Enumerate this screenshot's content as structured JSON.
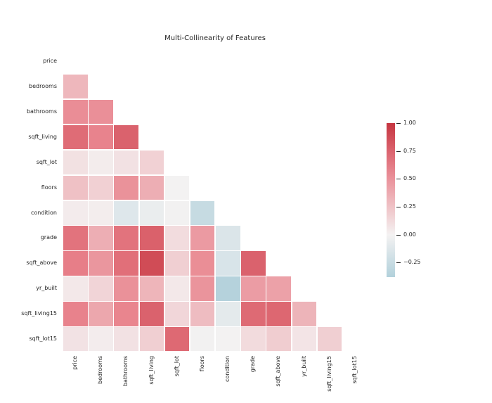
{
  "title": "Multi-Collinearity of Features",
  "chart_data": {
    "type": "heatmap",
    "title": "Multi-Collinearity of Features",
    "xlabel": "",
    "ylabel": "",
    "mask": "upper-triangle-and-diagonal",
    "grid": false,
    "features": [
      "price",
      "bedrooms",
      "bathrooms",
      "sqft_living",
      "sqft_lot",
      "floors",
      "condition",
      "grade",
      "sqft_above",
      "yr_built",
      "sqft_living15",
      "sqft_lot15"
    ],
    "rows": [
      {
        "feature": "price",
        "values": []
      },
      {
        "feature": "bedrooms",
        "values": [
          0.308
        ]
      },
      {
        "feature": "bathrooms",
        "values": [
          0.525,
          0.516
        ]
      },
      {
        "feature": "sqft_living",
        "values": [
          0.702,
          0.577,
          0.755
        ]
      },
      {
        "feature": "sqft_lot",
        "values": [
          0.09,
          0.032,
          0.088,
          0.173
        ]
      },
      {
        "feature": "floors",
        "values": [
          0.257,
          0.175,
          0.501,
          0.354,
          -0.005
        ]
      },
      {
        "feature": "condition",
        "values": [
          0.036,
          0.028,
          -0.125,
          -0.059,
          -0.009,
          -0.264
        ]
      },
      {
        "feature": "grade",
        "values": [
          0.667,
          0.357,
          0.665,
          0.763,
          0.114,
          0.458,
          -0.145
        ]
      },
      {
        "feature": "sqft_above",
        "values": [
          0.606,
          0.478,
          0.685,
          0.877,
          0.184,
          0.524,
          -0.158,
          0.756
        ]
      },
      {
        "feature": "yr_built",
        "values": [
          0.054,
          0.154,
          0.506,
          0.318,
          0.053,
          0.489,
          -0.361,
          0.447,
          0.424
        ]
      },
      {
        "feature": "sqft_living15",
        "values": [
          0.585,
          0.392,
          0.569,
          0.756,
          0.145,
          0.28,
          -0.093,
          0.713,
          0.731,
          0.326
        ]
      },
      {
        "feature": "sqft_lot15",
        "values": [
          0.082,
          0.029,
          0.087,
          0.183,
          0.719,
          -0.011,
          -0.003,
          0.119,
          0.195,
          0.071,
          0.183
        ]
      }
    ],
    "colormap": {
      "center": "#f4f2f2",
      "red_mid": "#e87f89",
      "red_max": "#c53540",
      "blue_min": "#aecfda"
    },
    "colorbar": {
      "vmax": 1.0,
      "vmin": -0.38,
      "ticks": [
        {
          "value": 1.0,
          "label": "1.00"
        },
        {
          "value": 0.75,
          "label": "0.75"
        },
        {
          "value": 0.5,
          "label": "0.50"
        },
        {
          "value": 0.25,
          "label": "0.25"
        },
        {
          "value": 0.0,
          "label": "0.00"
        },
        {
          "value": -0.25,
          "label": "−0.25"
        }
      ]
    }
  }
}
